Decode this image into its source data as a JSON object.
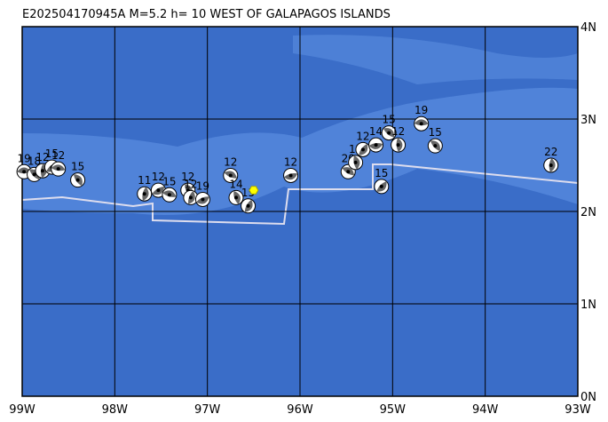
{
  "map": {
    "title": "E202504170945A  M=5.2 h= 10 WEST OF GALAPAGOS ISLANDS",
    "xlim": [
      -99,
      -93
    ],
    "ylim": [
      0,
      4
    ],
    "xticks": [
      {
        "value": -99,
        "label": "99W"
      },
      {
        "value": -98,
        "label": "98W"
      },
      {
        "value": -97,
        "label": "97W"
      },
      {
        "value": -96,
        "label": "96W"
      },
      {
        "value": -95,
        "label": "95W"
      },
      {
        "value": -94,
        "label": "94W"
      },
      {
        "value": -93,
        "label": "93W"
      }
    ],
    "yticks": [
      {
        "value": 0,
        "label": "0N"
      },
      {
        "value": 1,
        "label": "1N"
      },
      {
        "value": 2,
        "label": "2N"
      },
      {
        "value": 3,
        "label": "3N"
      },
      {
        "value": 4,
        "label": "4N"
      }
    ],
    "epicenter": {
      "lon": -96.5,
      "lat": 2.23
    },
    "events": [
      {
        "lon": -98.98,
        "lat": 2.43,
        "depth": 19
      },
      {
        "lon": -98.87,
        "lat": 2.4,
        "depth": 18
      },
      {
        "lon": -98.78,
        "lat": 2.44,
        "depth": 12
      },
      {
        "lon": -98.68,
        "lat": 2.48,
        "depth": 15
      },
      {
        "lon": -98.61,
        "lat": 2.46,
        "depth": 12
      },
      {
        "lon": -98.4,
        "lat": 2.34,
        "depth": 15
      },
      {
        "lon": -97.68,
        "lat": 2.19,
        "depth": 11
      },
      {
        "lon": -97.53,
        "lat": 2.23,
        "depth": 12
      },
      {
        "lon": -97.41,
        "lat": 2.18,
        "depth": 15
      },
      {
        "lon": -97.21,
        "lat": 2.23,
        "depth": 12
      },
      {
        "lon": -97.18,
        "lat": 2.15,
        "depth": 12
      },
      {
        "lon": -97.05,
        "lat": 2.13,
        "depth": 19
      },
      {
        "lon": -96.75,
        "lat": 2.39,
        "depth": 12
      },
      {
        "lon": -96.69,
        "lat": 2.15,
        "depth": 14
      },
      {
        "lon": -96.56,
        "lat": 2.06,
        "depth": 15
      },
      {
        "lon": -96.1,
        "lat": 2.39,
        "depth": 12
      },
      {
        "lon": -95.48,
        "lat": 2.43,
        "depth": 20
      },
      {
        "lon": -95.4,
        "lat": 2.53,
        "depth": 12
      },
      {
        "lon": -95.32,
        "lat": 2.67,
        "depth": 12
      },
      {
        "lon": -95.18,
        "lat": 2.72,
        "depth": 14
      },
      {
        "lon": -95.04,
        "lat": 2.85,
        "depth": 15
      },
      {
        "lon": -94.94,
        "lat": 2.72,
        "depth": 12
      },
      {
        "lon": -95.12,
        "lat": 2.27,
        "depth": 15
      },
      {
        "lon": -94.69,
        "lat": 2.95,
        "depth": 19
      },
      {
        "lon": -94.54,
        "lat": 2.71,
        "depth": 15
      },
      {
        "lon": -93.29,
        "lat": 2.5,
        "depth": 22
      }
    ]
  }
}
